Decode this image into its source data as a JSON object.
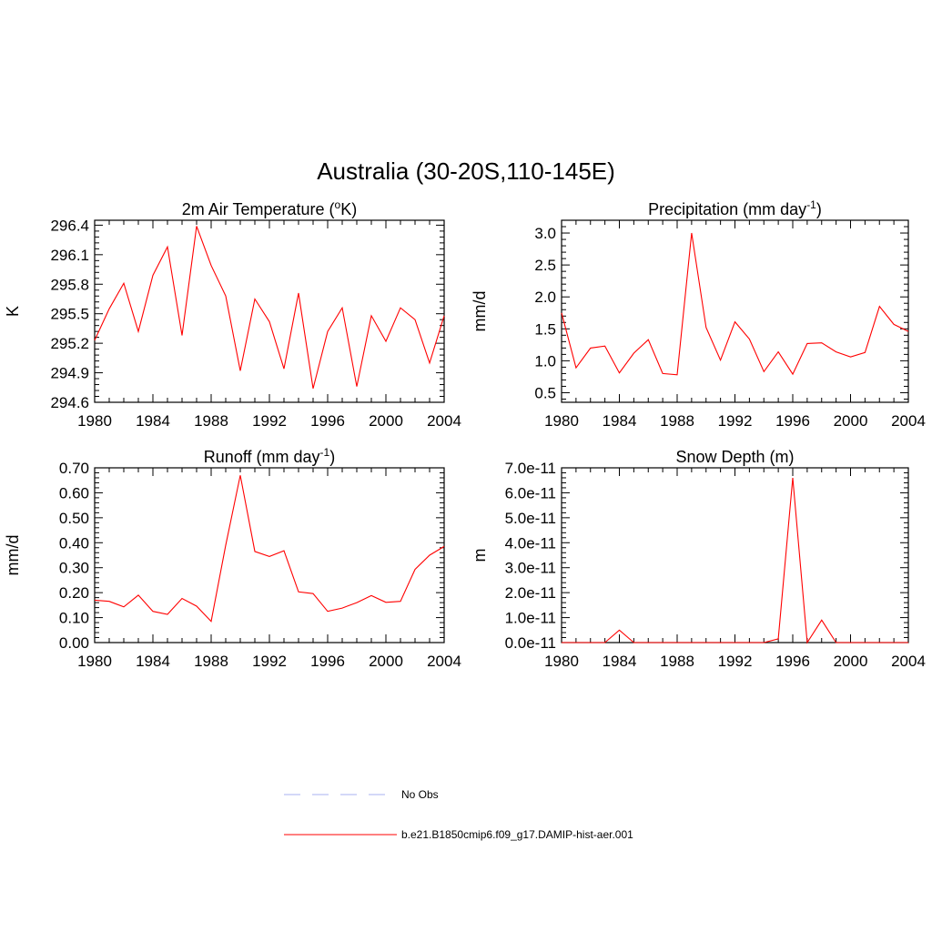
{
  "title": "Australia (30-20S,110-145E)",
  "legend": [
    {
      "label": "No Obs",
      "color": "#aab0f0",
      "dash": true
    },
    {
      "label": "b.e21.B1850cmip6.f09_g17.DAMIP-hist-aer.001",
      "color": "#ff0000",
      "dash": false
    }
  ],
  "chart_data": [
    {
      "type": "line",
      "title": "2m Air Temperature (",
      "title_sup": "o",
      "title_tail": "K)",
      "ylabel": "K",
      "xlim": [
        1980,
        2004
      ],
      "ylim": [
        294.6,
        296.45
      ],
      "xticks": [
        1980,
        1984,
        1988,
        1992,
        1996,
        2000,
        2004
      ],
      "yticks": [
        294.6,
        294.9,
        295.2,
        295.5,
        295.8,
        296.1,
        296.4
      ],
      "ytick_labels": [
        "294.6",
        "294.9",
        "295.2",
        "295.5",
        "295.8",
        "296.1",
        "296.4"
      ],
      "series": [
        {
          "color": "#ff0000",
          "x": [
            1980,
            1981,
            1982,
            1983,
            1984,
            1985,
            1986,
            1987,
            1988,
            1989,
            1990,
            1991,
            1992,
            1993,
            1994,
            1995,
            1996,
            1997,
            1998,
            1999,
            2000,
            2001,
            2002,
            2003,
            2004
          ],
          "values": [
            295.23,
            295.55,
            295.81,
            295.32,
            295.89,
            296.18,
            295.28,
            296.39,
            295.99,
            295.68,
            294.92,
            295.65,
            295.42,
            294.94,
            295.71,
            294.74,
            295.32,
            295.56,
            294.76,
            295.48,
            295.22,
            295.56,
            295.44,
            295.0,
            295.48
          ]
        }
      ]
    },
    {
      "type": "line",
      "title": "Precipitation (mm day",
      "title_sup": "-1",
      "title_tail": ")",
      "ylabel": "mm/d",
      "xlim": [
        1980,
        2004
      ],
      "ylim": [
        0.35,
        3.2
      ],
      "xticks": [
        1980,
        1984,
        1988,
        1992,
        1996,
        2000,
        2004
      ],
      "yticks": [
        0.5,
        1.0,
        1.5,
        2.0,
        2.5,
        3.0
      ],
      "ytick_labels": [
        "0.5",
        "1.0",
        "1.5",
        "2.0",
        "2.5",
        "3.0"
      ],
      "series": [
        {
          "color": "#ff0000",
          "x": [
            1980,
            1981,
            1982,
            1983,
            1984,
            1985,
            1986,
            1987,
            1988,
            1989,
            1990,
            1991,
            1992,
            1993,
            1994,
            1995,
            1996,
            1997,
            1998,
            1999,
            2000,
            2001,
            2002,
            2003,
            2004
          ],
          "values": [
            1.75,
            0.89,
            1.2,
            1.23,
            0.81,
            1.12,
            1.33,
            0.8,
            0.78,
            3.0,
            1.52,
            1.01,
            1.61,
            1.34,
            0.83,
            1.14,
            0.79,
            1.27,
            1.28,
            1.14,
            1.06,
            1.13,
            1.85,
            1.57,
            1.46
          ]
        }
      ]
    },
    {
      "type": "line",
      "title": "Runoff (mm day",
      "title_sup": "-1",
      "title_tail": ")",
      "ylabel": "mm/d",
      "xlim": [
        1980,
        2004
      ],
      "ylim": [
        0.0,
        0.7
      ],
      "xticks": [
        1980,
        1984,
        1988,
        1992,
        1996,
        2000,
        2004
      ],
      "yticks": [
        0.0,
        0.1,
        0.2,
        0.3,
        0.4,
        0.5,
        0.6,
        0.7
      ],
      "ytick_labels": [
        "0.00",
        "0.10",
        "0.20",
        "0.30",
        "0.40",
        "0.50",
        "0.60",
        "0.70"
      ],
      "series": [
        {
          "color": "#ff0000",
          "x": [
            1980,
            1981,
            1982,
            1983,
            1984,
            1985,
            1986,
            1987,
            1988,
            1989,
            1990,
            1991,
            1992,
            1993,
            1994,
            1995,
            1996,
            1997,
            1998,
            1999,
            2000,
            2001,
            2002,
            2003,
            2004
          ],
          "values": [
            0.17,
            0.165,
            0.143,
            0.19,
            0.125,
            0.113,
            0.177,
            0.146,
            0.085,
            0.39,
            0.67,
            0.365,
            0.345,
            0.368,
            0.203,
            0.196,
            0.125,
            0.138,
            0.16,
            0.188,
            0.161,
            0.165,
            0.293,
            0.35,
            0.385
          ]
        }
      ]
    },
    {
      "type": "line",
      "title": "Snow Depth (m)",
      "title_sup": "",
      "title_tail": "",
      "ylabel": "m",
      "xlim": [
        1980,
        2004
      ],
      "ylim": [
        0,
        7e-11
      ],
      "xticks": [
        1980,
        1984,
        1988,
        1992,
        1996,
        2000,
        2004
      ],
      "yticks": [
        0,
        1e-11,
        2e-11,
        3e-11,
        4e-11,
        5e-11,
        6e-11,
        7e-11
      ],
      "ytick_labels": [
        "0.0e-11",
        "1.0e-11",
        "2.0e-11",
        "3.0e-11",
        "4.0e-11",
        "5.0e-11",
        "6.0e-11",
        "7.0e-11"
      ],
      "series": [
        {
          "color": "#ff0000",
          "x": [
            1980,
            1981,
            1982,
            1983,
            1984,
            1985,
            1986,
            1987,
            1988,
            1989,
            1990,
            1991,
            1992,
            1993,
            1994,
            1995,
            1996,
            1997,
            1998,
            1999,
            2000,
            2001,
            2002,
            2003,
            2004
          ],
          "values": [
            0,
            0,
            0,
            0,
            5e-12,
            0,
            0,
            0,
            0,
            0,
            0,
            0,
            0,
            0,
            0,
            1.5e-12,
            6.6e-11,
            0,
            9e-12,
            0,
            0,
            0,
            0,
            0,
            0
          ]
        }
      ]
    }
  ]
}
